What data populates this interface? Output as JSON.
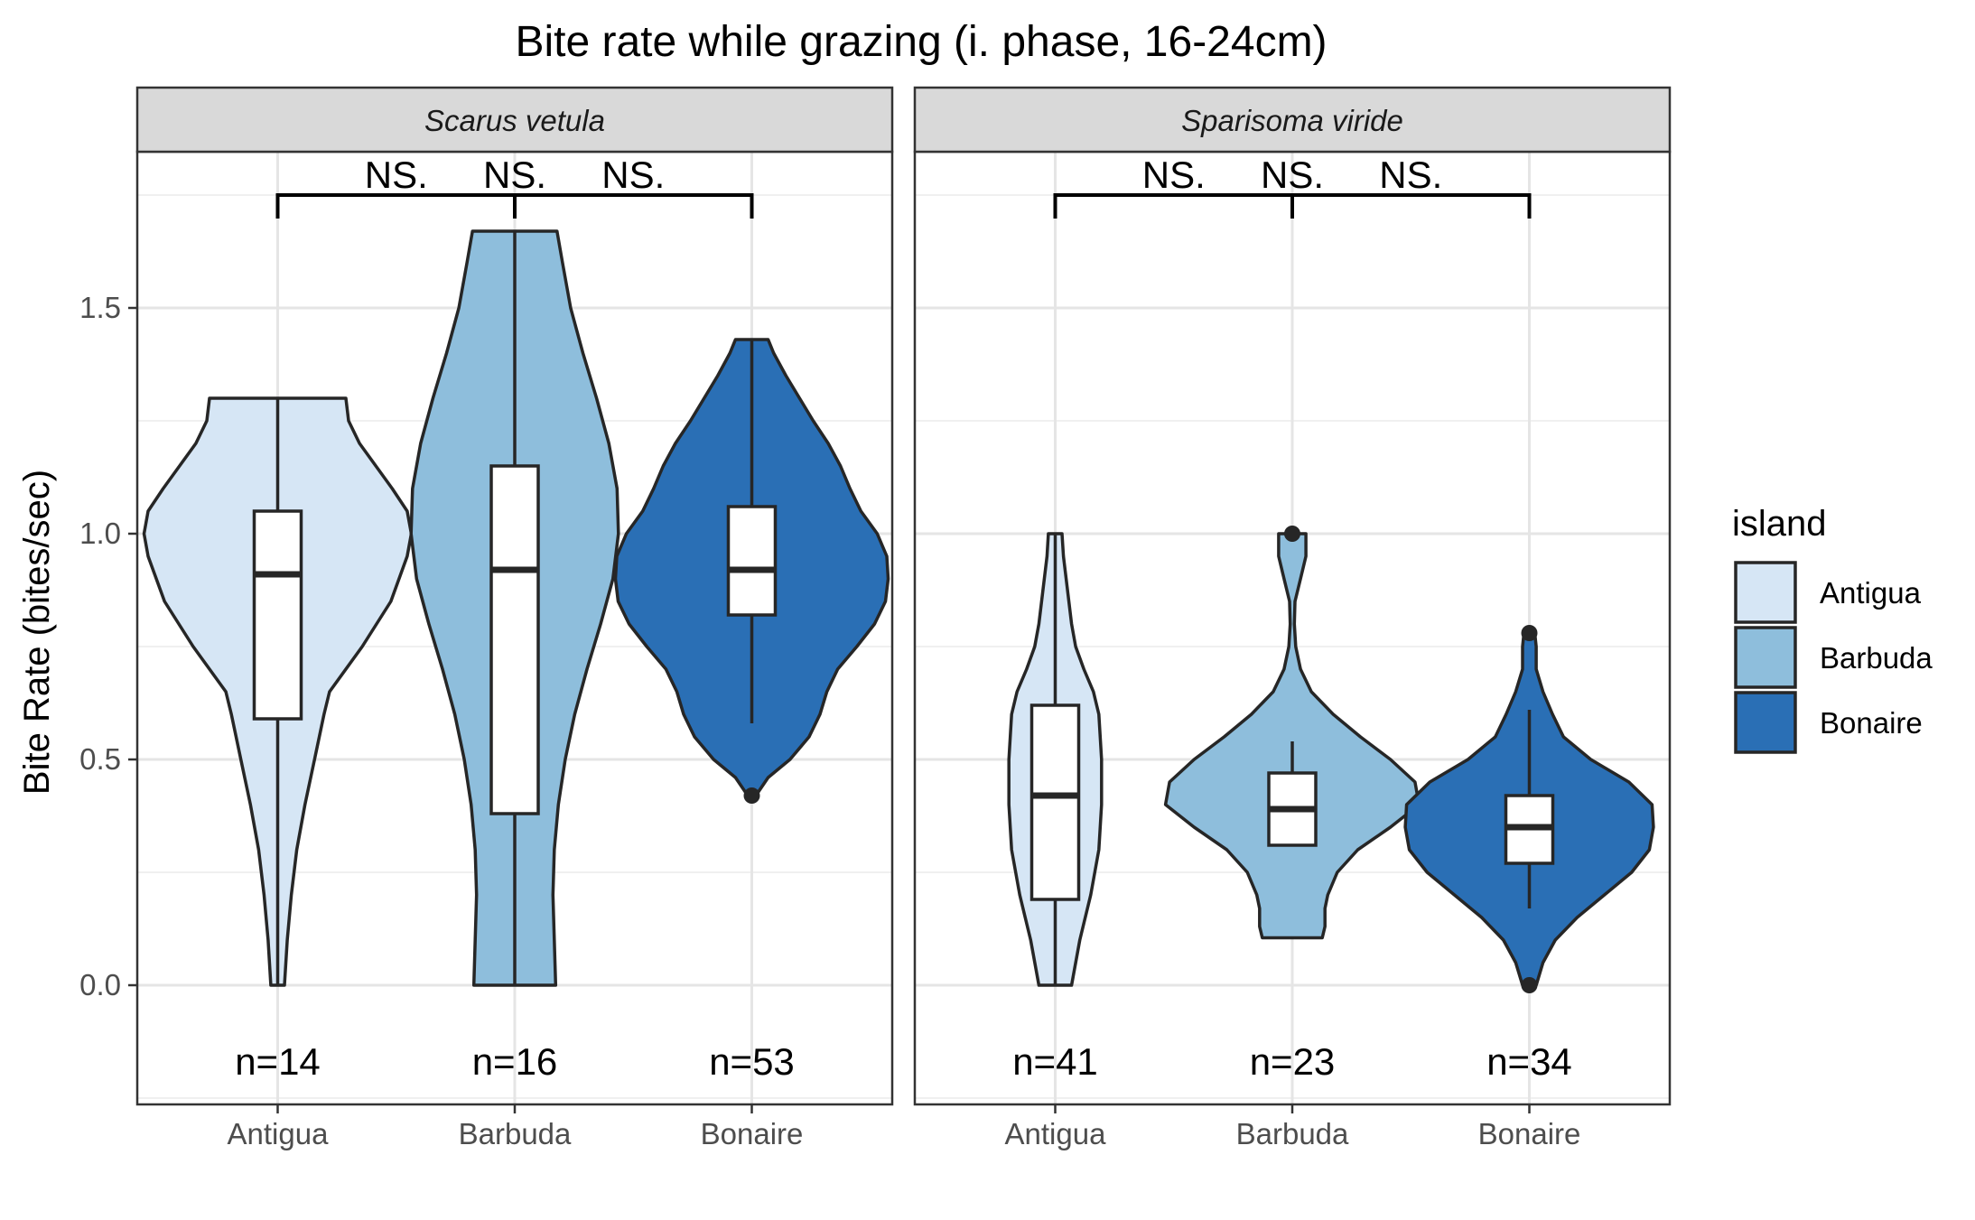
{
  "chart_data": {
    "type": "violin",
    "title": "Bite rate while grazing (i. phase, 16-24cm)",
    "ylabel": "Bite Rate (bites/sec)",
    "xlabel": "",
    "ylim": [
      -0.25,
      1.85
    ],
    "yticks": [
      "0.0",
      "0.5",
      "1.0",
      "1.5"
    ],
    "ytick_values": [
      0.0,
      0.5,
      1.0,
      1.5
    ],
    "grid": true,
    "categories": [
      "Antigua",
      "Barbuda",
      "Bonaire"
    ],
    "colors": {
      "Antigua": "#d6e6f5",
      "Barbuda": "#8ebedc",
      "Bonaire": "#2a6fb5"
    },
    "legend": {
      "title": "island",
      "position": "right",
      "entries": [
        "Antigua",
        "Barbuda",
        "Bonaire"
      ]
    },
    "panels": [
      {
        "strip": "Scarus vetula",
        "significance": [
          "NS.",
          "NS.",
          "NS."
        ],
        "groups": [
          {
            "island": "Antigua",
            "n_label": "n=14",
            "min": 0.0,
            "q1": 0.59,
            "median": 0.91,
            "q3": 1.05,
            "max": 1.3,
            "outliers": [],
            "density": [
              [
                0.0,
                0.05
              ],
              [
                0.1,
                0.07
              ],
              [
                0.2,
                0.1
              ],
              [
                0.3,
                0.14
              ],
              [
                0.4,
                0.2
              ],
              [
                0.5,
                0.27
              ],
              [
                0.6,
                0.34
              ],
              [
                0.65,
                0.38
              ],
              [
                0.75,
                0.62
              ],
              [
                0.85,
                0.83
              ],
              [
                0.95,
                0.95
              ],
              [
                1.0,
                0.98
              ],
              [
                1.05,
                0.95
              ],
              [
                1.1,
                0.84
              ],
              [
                1.15,
                0.72
              ],
              [
                1.2,
                0.6
              ],
              [
                1.25,
                0.52
              ],
              [
                1.3,
                0.5
              ]
            ]
          },
          {
            "island": "Barbuda",
            "n_label": "n=16",
            "min": 0.0,
            "q1": 0.38,
            "median": 0.92,
            "q3": 1.15,
            "max": 1.67,
            "outliers": [],
            "density": [
              [
                0.0,
                0.3
              ],
              [
                0.1,
                0.29
              ],
              [
                0.2,
                0.28
              ],
              [
                0.3,
                0.29
              ],
              [
                0.4,
                0.32
              ],
              [
                0.5,
                0.37
              ],
              [
                0.6,
                0.44
              ],
              [
                0.7,
                0.53
              ],
              [
                0.8,
                0.63
              ],
              [
                0.9,
                0.72
              ],
              [
                1.0,
                0.76
              ],
              [
                1.1,
                0.75
              ],
              [
                1.2,
                0.69
              ],
              [
                1.3,
                0.6
              ],
              [
                1.4,
                0.5
              ],
              [
                1.5,
                0.41
              ],
              [
                1.6,
                0.35
              ],
              [
                1.67,
                0.31
              ]
            ]
          },
          {
            "island": "Bonaire",
            "n_label": "n=53",
            "min": 0.58,
            "q1": 0.82,
            "median": 0.92,
            "q3": 1.06,
            "max": 1.43,
            "outliers": [
              0.42
            ],
            "density": [
              [
                0.42,
                0.03
              ],
              [
                0.46,
                0.12
              ],
              [
                0.5,
                0.28
              ],
              [
                0.55,
                0.42
              ],
              [
                0.6,
                0.5
              ],
              [
                0.65,
                0.55
              ],
              [
                0.7,
                0.63
              ],
              [
                0.75,
                0.77
              ],
              [
                0.8,
                0.9
              ],
              [
                0.85,
                0.98
              ],
              [
                0.9,
                1.0
              ],
              [
                0.95,
                0.99
              ],
              [
                1.0,
                0.92
              ],
              [
                1.05,
                0.8
              ],
              [
                1.1,
                0.72
              ],
              [
                1.15,
                0.65
              ],
              [
                1.2,
                0.56
              ],
              [
                1.25,
                0.45
              ],
              [
                1.3,
                0.35
              ],
              [
                1.35,
                0.25
              ],
              [
                1.4,
                0.16
              ],
              [
                1.43,
                0.12
              ]
            ]
          }
        ]
      },
      {
        "strip": "Sparisoma viride",
        "significance": [
          "NS.",
          "NS.",
          "NS."
        ],
        "groups": [
          {
            "island": "Antigua",
            "n_label": "n=41",
            "min": 0.0,
            "q1": 0.19,
            "median": 0.42,
            "q3": 0.62,
            "max": 1.0,
            "outliers": [],
            "density": [
              [
                0.0,
                0.12
              ],
              [
                0.1,
                0.18
              ],
              [
                0.2,
                0.26
              ],
              [
                0.3,
                0.32
              ],
              [
                0.4,
                0.34
              ],
              [
                0.5,
                0.34
              ],
              [
                0.6,
                0.32
              ],
              [
                0.65,
                0.28
              ],
              [
                0.7,
                0.21
              ],
              [
                0.75,
                0.15
              ],
              [
                0.8,
                0.12
              ],
              [
                0.85,
                0.1
              ],
              [
                0.9,
                0.08
              ],
              [
                0.95,
                0.06
              ],
              [
                1.0,
                0.05
              ]
            ]
          },
          {
            "island": "Barbuda",
            "n_label": "n=23",
            "min": 0.31,
            "q1": 0.31,
            "median": 0.39,
            "q3": 0.47,
            "max": 0.54,
            "outliers": [
              1.0
            ],
            "density": [
              [
                0.105,
                0.22
              ],
              [
                0.13,
                0.24
              ],
              [
                0.17,
                0.24
              ],
              [
                0.2,
                0.26
              ],
              [
                0.25,
                0.33
              ],
              [
                0.3,
                0.48
              ],
              [
                0.35,
                0.72
              ],
              [
                0.4,
                0.93
              ],
              [
                0.45,
                0.9
              ],
              [
                0.5,
                0.72
              ],
              [
                0.55,
                0.5
              ],
              [
                0.6,
                0.3
              ],
              [
                0.65,
                0.14
              ],
              [
                0.7,
                0.06
              ],
              [
                0.75,
                0.025
              ],
              [
                0.8,
                0.015
              ],
              [
                0.85,
                0.02
              ],
              [
                0.9,
                0.06
              ],
              [
                0.95,
                0.1
              ],
              [
                1.0,
                0.1
              ]
            ]
          },
          {
            "island": "Bonaire",
            "n_label": "n=34",
            "min": 0.17,
            "q1": 0.27,
            "median": 0.35,
            "q3": 0.42,
            "max": 0.61,
            "outliers": [
              0.0,
              0.78
            ],
            "density": [
              [
                0.0,
                0.05
              ],
              [
                0.05,
                0.1
              ],
              [
                0.1,
                0.19
              ],
              [
                0.15,
                0.35
              ],
              [
                0.2,
                0.55
              ],
              [
                0.25,
                0.75
              ],
              [
                0.3,
                0.88
              ],
              [
                0.35,
                0.91
              ],
              [
                0.4,
                0.9
              ],
              [
                0.45,
                0.73
              ],
              [
                0.5,
                0.45
              ],
              [
                0.55,
                0.25
              ],
              [
                0.6,
                0.17
              ],
              [
                0.65,
                0.1
              ],
              [
                0.7,
                0.05
              ],
              [
                0.75,
                0.05
              ],
              [
                0.78,
                0.04
              ]
            ]
          }
        ]
      }
    ]
  }
}
